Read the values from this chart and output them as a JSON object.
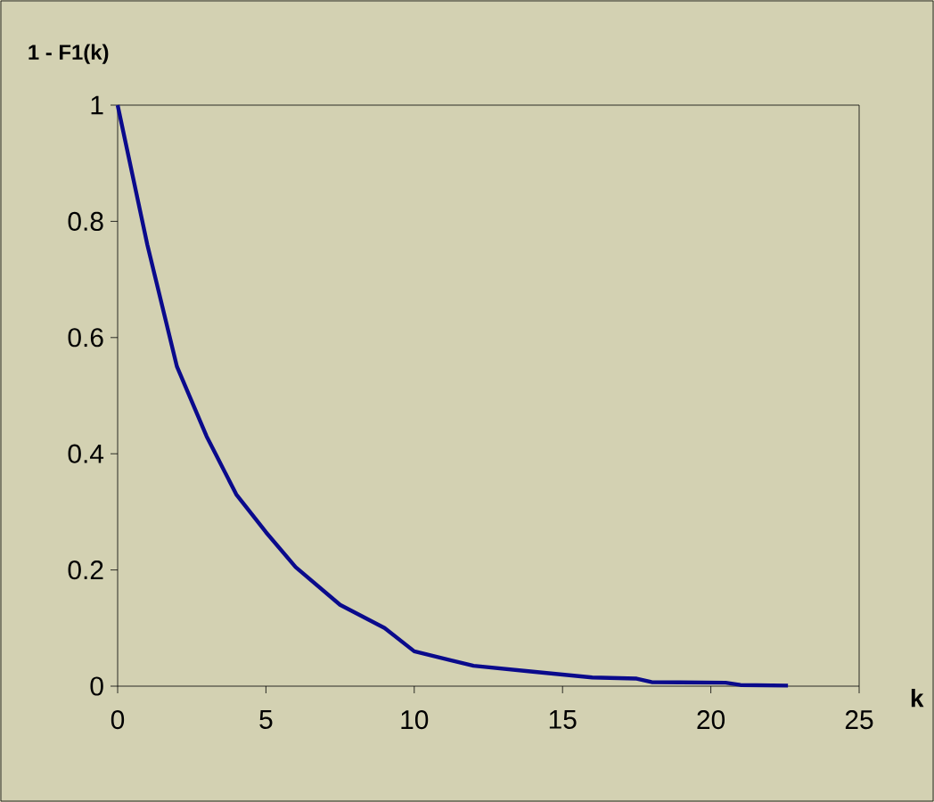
{
  "chart_data": {
    "type": "line",
    "xlabel": "k",
    "ylabel": "1 - F1(k)",
    "x": [
      0,
      1,
      2,
      3,
      4,
      5,
      6,
      7.5,
      9,
      10,
      12,
      14,
      16,
      17.5,
      18,
      20.5,
      21,
      22.6
    ],
    "series": [
      {
        "color": "#0a0a8c",
        "values": [
          1,
          0.76,
          0.55,
          0.43,
          0.33,
          0.265,
          0.205,
          0.14,
          0.1,
          0.06,
          0.035,
          0.025,
          0.015,
          0.013,
          0.007,
          0.006,
          0.002,
          0.001
        ]
      }
    ],
    "xlim": [
      0,
      25
    ],
    "xticks": [
      0,
      5,
      10,
      15,
      20,
      25
    ],
    "ylim": [
      0,
      1
    ],
    "yticks": [
      0,
      0.2,
      0.4,
      0.6,
      0.8,
      1
    ],
    "grid": false,
    "marker": "none",
    "line_style": "solid"
  }
}
